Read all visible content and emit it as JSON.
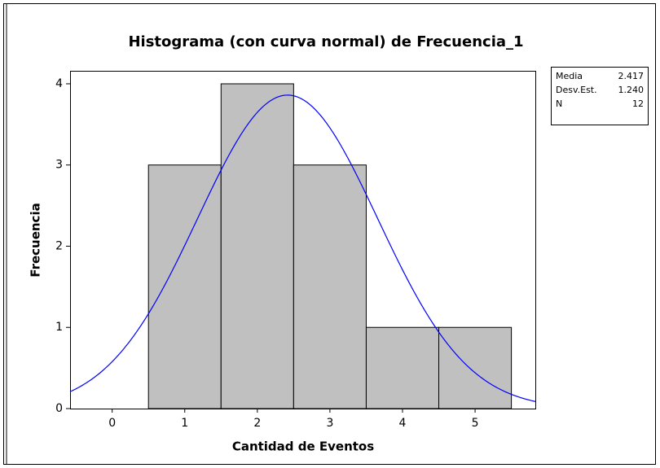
{
  "chart_data": {
    "type": "histogram",
    "title": "Histograma (con curva normal) de Frecuencia_1",
    "x_label": "Cantidad de Eventos",
    "y_label": "Frecuencia",
    "bins": [
      0.5,
      1.5,
      2.5,
      3.5,
      4.5,
      5.5
    ],
    "values": [
      3,
      4,
      3,
      1,
      1
    ],
    "color": "#c0c0c0",
    "curve_color": "#0000ff",
    "xlim": [
      -0.58,
      5.83
    ],
    "ylim": [
      0,
      4.16
    ],
    "xticks": [
      0,
      1,
      2,
      3,
      4,
      5
    ],
    "yticks": [
      0,
      1,
      2,
      3,
      4
    ],
    "stats": [
      {
        "name": "Media",
        "value": 2.417
      },
      {
        "name": "Desv.Est.",
        "value": 1.24,
        "value_label": "1.240"
      },
      {
        "name": "N",
        "value": 12
      }
    ]
  }
}
